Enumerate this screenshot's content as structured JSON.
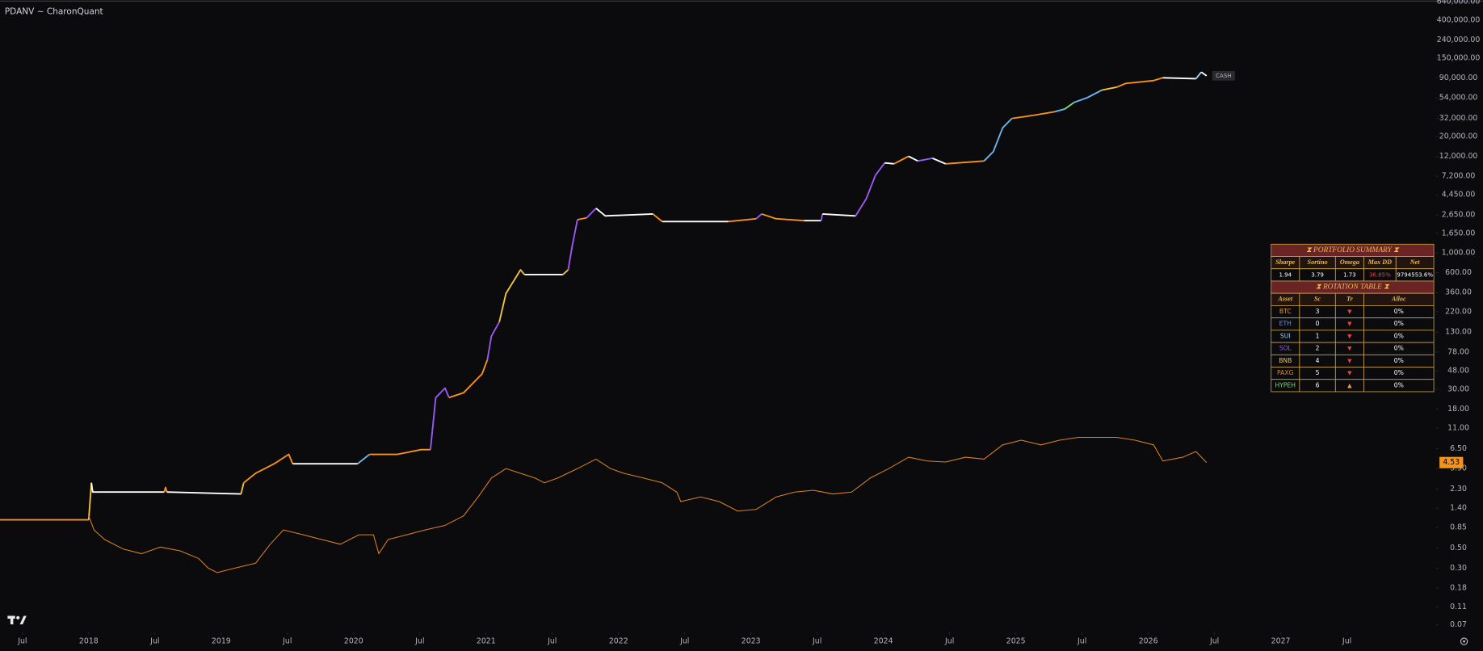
{
  "chart_data": {
    "type": "line",
    "title": "PDANV ~ CharonQuant",
    "log_y": true,
    "grid": false,
    "xlim": [
      2017.33,
      2028.17
    ],
    "ylim": [
      0.058,
      667000
    ],
    "xticks": [
      {
        "value": 2017.5,
        "label": "Jul"
      },
      2018,
      {
        "value": 2018.5,
        "label": "Jul"
      },
      2019,
      {
        "value": 2019.5,
        "label": "Jul"
      },
      2020,
      {
        "value": 2020.5,
        "label": "Jul"
      },
      2021,
      {
        "value": 2021.5,
        "label": "Jul"
      },
      2022,
      {
        "value": 2022.5,
        "label": "Jul"
      },
      2023,
      {
        "value": 2023.5,
        "label": "Jul"
      },
      2024,
      {
        "value": 2024.5,
        "label": "Jul"
      },
      2025,
      {
        "value": 2025.5,
        "label": "Jul"
      },
      2026,
      {
        "value": 2026.5,
        "label": "Jul"
      },
      2027,
      {
        "value": 2027.5,
        "label": "Jul"
      }
    ],
    "yticks": [
      {
        "value": 640000,
        "label": "640,000.00"
      },
      {
        "value": 400000,
        "label": "400,000.00"
      },
      {
        "value": 240000,
        "label": "240,000.00"
      },
      {
        "value": 150000,
        "label": "150,000.00"
      },
      {
        "value": 90000,
        "label": "90,000.00"
      },
      {
        "value": 54000,
        "label": "54,000.00"
      },
      {
        "value": 32000,
        "label": "32,000.00"
      },
      {
        "value": 20000,
        "label": "20,000.00"
      },
      {
        "value": 12000,
        "label": "12,000.00"
      },
      {
        "value": 7200,
        "label": "7,200.00"
      },
      {
        "value": 4450,
        "label": "4,450.00"
      },
      {
        "value": 2650,
        "label": "2,650.00"
      },
      {
        "value": 1650,
        "label": "1,650.00"
      },
      {
        "value": 1000,
        "label": "1,000.00"
      },
      {
        "value": 600,
        "label": "600.00"
      },
      {
        "value": 360,
        "label": "360.00"
      },
      {
        "value": 220,
        "label": "220.00"
      },
      {
        "value": 130,
        "label": "130.00"
      },
      {
        "value": 78,
        "label": "78.00"
      },
      {
        "value": 48,
        "label": "48.00"
      },
      {
        "value": 30,
        "label": "30.00"
      },
      {
        "value": 18,
        "label": "18.00"
      },
      {
        "value": 11,
        "label": "11.00"
      },
      {
        "value": 6.5,
        "label": "6.50"
      },
      {
        "value": 3.9,
        "label": "3.90"
      },
      {
        "value": 2.3,
        "label": "2.30"
      },
      {
        "value": 1.4,
        "label": "1.40"
      },
      {
        "value": 0.85,
        "label": "0.85"
      },
      {
        "value": 0.5,
        "label": "0.50"
      },
      {
        "value": 0.3,
        "label": "0.30"
      },
      {
        "value": 0.18,
        "label": "0.18"
      },
      {
        "value": 0.11,
        "label": "0.11"
      },
      {
        "value": 0.07,
        "label": "0.07"
      }
    ],
    "series": [
      {
        "color": "#ffffff",
        "end_label": "CASH",
        "x": [
          2017.33,
          2018.0,
          2018.02,
          2018.03,
          2018.57,
          2018.58,
          2018.59,
          2019.15,
          2019.17,
          2019.26,
          2019.4,
          2019.51,
          2019.54,
          2020.03,
          2020.12,
          2020.33,
          2020.51,
          2020.58,
          2020.62,
          2020.69,
          2020.72,
          2020.83,
          2020.97,
          2021.01,
          2021.04,
          2021.1,
          2021.15,
          2021.26,
          2021.29,
          2021.58,
          2021.62,
          2021.65,
          2021.69,
          2021.76,
          2021.83,
          2021.9,
          2022.26,
          2022.33,
          2022.83,
          2023.04,
          2023.08,
          2023.19,
          2023.4,
          2023.53,
          2023.54,
          2023.79,
          2023.87,
          2023.94,
          2024.01,
          2024.08,
          2024.19,
          2024.26,
          2024.37,
          2024.47,
          2024.76,
          2024.83,
          2024.9,
          2024.97,
          2025.12,
          2025.29,
          2025.37,
          2025.44,
          2025.54,
          2025.65,
          2025.76,
          2025.83,
          2026.04,
          2026.11,
          2026.36,
          2026.4,
          2026.44
        ],
        "values": [
          1.04,
          1.04,
          2.69,
          2.12,
          2.12,
          2.39,
          2.12,
          2.02,
          2.69,
          3.44,
          4.39,
          5.6,
          4.39,
          4.39,
          5.6,
          5.6,
          6.32,
          6.32,
          24.1,
          30.8,
          24.1,
          27.3,
          44.4,
          63.9,
          117,
          169,
          351,
          646,
          572,
          572,
          646,
          1187,
          2348,
          2466,
          3147,
          2589,
          2720,
          2235,
          2235,
          2405,
          2720,
          2405,
          2292,
          2292,
          2720,
          2589,
          4010,
          7370,
          10130,
          9880,
          12000,
          10630,
          11420,
          9880,
          10630,
          13550,
          24930,
          31800,
          34200,
          37700,
          40550,
          48070,
          54300,
          66000,
          71000,
          78300,
          84200,
          90600,
          88400,
          104800,
          95100
        ],
        "segment_colors": [
          null,
          "#f7931a",
          "#f3c53a",
          "#ffffff",
          "#ffffff",
          "#f7931a",
          "#f7931a",
          "#ffffff",
          "#f3c53a",
          "#f7931a",
          "#f7931a",
          "#f7931a",
          "#f7931a",
          "#ffffff",
          "#6cb4ee",
          "#f7931a",
          "#f7931a",
          "#f7931a",
          "#9b59f6",
          "#9b59f6",
          "#9b59f6",
          "#f7931a",
          "#f7931a",
          "#f7931a",
          "#9b59f6",
          "#9b59f6",
          "#f3c53a",
          "#f3c53a",
          "#f3c53a",
          "#ffffff",
          "#f3c53a",
          "#9b59f6",
          "#9b59f6",
          "#f7931a",
          "#9b59f6",
          "#ffffff",
          "#ffffff",
          "#f7931a",
          "#ffffff",
          "#f7931a",
          "#9b59f6",
          "#f7931a",
          "#f7931a",
          "#ffffff",
          "#9b59f6",
          "#ffffff",
          "#9b59f6",
          "#9b59f6",
          "#9b59f6",
          "#ffffff",
          "#f7931a",
          "#ffffff",
          "#9b59f6",
          "#ffffff",
          "#f7931a",
          "#6cb4ee",
          "#6cb4ee",
          "#6cb4ee",
          "#f7931a",
          "#f7931a",
          "#6cb4ee",
          "#7ed67a",
          "#6cb4ee",
          "#6cb4ee",
          "#f3c53a",
          "#f7931a",
          "#f7931a",
          "#f7931a",
          "#ffffff",
          "#8fd3ff",
          "#ffffff"
        ]
      },
      {
        "color": "#d9821f",
        "end_tag_color": "#f7931a",
        "x": [
          2018.0,
          2018.04,
          2018.12,
          2018.26,
          2018.4,
          2018.54,
          2018.69,
          2018.83,
          2018.9,
          2018.97,
          2019.11,
          2019.26,
          2019.37,
          2019.47,
          2019.62,
          2019.76,
          2019.9,
          2020.04,
          2020.15,
          2020.19,
          2020.26,
          2020.4,
          2020.54,
          2020.69,
          2020.83,
          2020.94,
          2021.04,
          2021.15,
          2021.26,
          2021.37,
          2021.44,
          2021.54,
          2021.69,
          2021.83,
          2021.94,
          2022.04,
          2022.19,
          2022.33,
          2022.44,
          2022.47,
          2022.62,
          2022.76,
          2022.9,
          2023.04,
          2023.19,
          2023.33,
          2023.47,
          2023.62,
          2023.76,
          2023.9,
          2024.04,
          2024.19,
          2024.33,
          2024.47,
          2024.62,
          2024.76,
          2024.9,
          2025.04,
          2025.19,
          2025.33,
          2025.47,
          2025.62,
          2025.76,
          2025.9,
          2026.04,
          2026.11,
          2026.26,
          2026.36,
          2026.44
        ],
        "values": [
          1.15,
          0.8,
          0.625,
          0.49,
          0.434,
          0.515,
          0.467,
          0.384,
          0.301,
          0.267,
          0.301,
          0.34,
          0.554,
          0.8,
          0.706,
          0.625,
          0.554,
          0.706,
          0.706,
          0.434,
          0.625,
          0.706,
          0.8,
          0.9,
          1.15,
          1.87,
          3.04,
          3.88,
          3.44,
          3.04,
          2.69,
          3.04,
          3.88,
          4.95,
          3.88,
          3.44,
          3.04,
          2.69,
          2.12,
          1.66,
          1.87,
          1.66,
          1.3,
          1.36,
          1.87,
          2.12,
          2.22,
          2.02,
          2.12,
          3.04,
          3.88,
          5.2,
          4.72,
          4.6,
          5.2,
          4.95,
          7.14,
          8.06,
          7.14,
          8.06,
          8.67,
          8.67,
          8.67,
          8.06,
          7.14,
          4.72,
          5.2,
          6.02,
          4.53
        ]
      }
    ]
  },
  "table": {
    "summary_title": "⧗  PORTFOLIO  SUMMARY  ⧗",
    "summary_header": [
      "Sharpe",
      "Sortino",
      "Omega",
      "Max DD",
      "Net"
    ],
    "summary_values": [
      "1.94",
      "3.79",
      "1.73",
      "36.85%",
      "9794553.6%"
    ],
    "summary_value_colors": [
      "#ffffff",
      "#ffffff",
      "#ffffff",
      "#e0463c",
      "#ffffff"
    ],
    "rotation_title": "⧗  ROTATION  TABLE  ⧗",
    "rotation_header": [
      "Asset",
      "Sc",
      "Tr",
      "Alloc"
    ],
    "rotation_rows": [
      [
        "BTC",
        "3",
        "▼",
        "0%"
      ],
      [
        "ETH",
        "0",
        "▼",
        "0%"
      ],
      [
        "SUI",
        "1",
        "▼",
        "0%"
      ],
      [
        "SOL",
        "2",
        "▼",
        "0%"
      ],
      [
        "BNB",
        "4",
        "▼",
        "0%"
      ],
      [
        "PAXG",
        "5",
        "▼",
        "0%"
      ],
      [
        "HYPEH",
        "6",
        "▲",
        "0%"
      ]
    ],
    "asset_colors": [
      "#f7931a",
      "#6c8ef0",
      "#8fd3ff",
      "#9b59f6",
      "#f3c53a",
      "#c98a3a",
      "#7ed67a"
    ],
    "trend_colors": [
      "#e0463c",
      "#e0463c",
      "#e0463c",
      "#e0463c",
      "#e0463c",
      "#e0463c",
      "#f0a040"
    ]
  }
}
